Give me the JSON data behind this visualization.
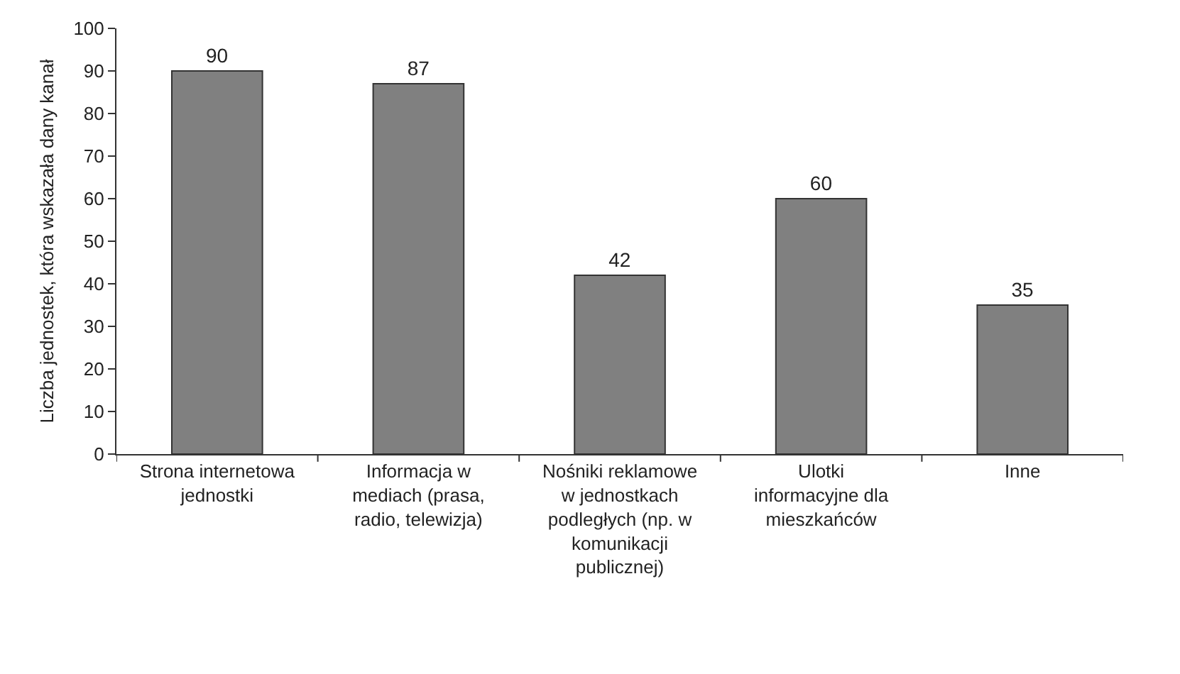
{
  "chart_data": {
    "type": "bar",
    "ylabel": "Liczba jednostek, która wskazała dany kanał",
    "categories": [
      "Strona internetowa jednostki",
      "Informacja w mediach (prasa, radio, telewizja)",
      "Nośniki reklamowe w jednostkach podległych (np. w komunikacji publicznej)",
      "Ulotki informacyjne dla mieszkańców",
      "Inne"
    ],
    "values": [
      90,
      87,
      42,
      60,
      35
    ],
    "color": "#808080",
    "ylim": [
      0,
      100
    ],
    "yticks": [
      0,
      10,
      20,
      30,
      40,
      50,
      60,
      70,
      80,
      90,
      100
    ],
    "data_labels": true,
    "legend": false
  }
}
